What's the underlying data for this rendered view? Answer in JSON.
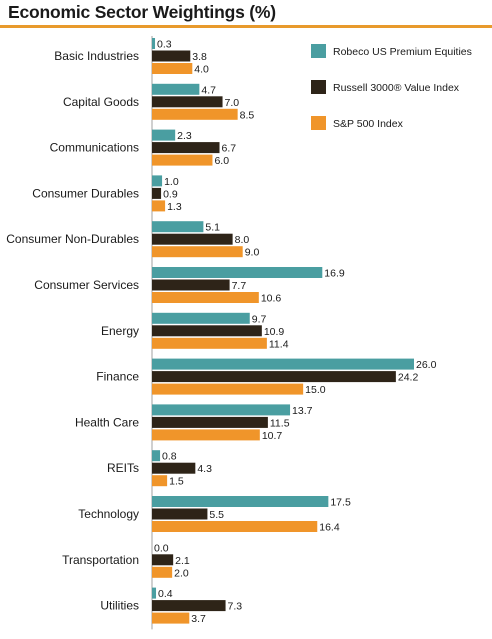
{
  "chart_data": {
    "type": "bar",
    "orientation": "horizontal",
    "title": "Economic Sector Weightings (%)",
    "categories": [
      "Basic Industries",
      "Capital Goods",
      "Communications",
      "Consumer Durables",
      "Consumer Non-Durables",
      "Consumer Services",
      "Energy",
      "Finance",
      "Health Care",
      "REITs",
      "Technology",
      "Transportation",
      "Utilities"
    ],
    "series": [
      {
        "name": "Robeco US Premium Equities",
        "color": "#4a9ea1",
        "values": [
          0.3,
          4.7,
          2.3,
          1.0,
          5.1,
          16.9,
          9.7,
          26.0,
          13.7,
          0.8,
          17.5,
          0.0,
          0.4
        ],
        "labels": [
          "0.3",
          "4.7",
          "2.3",
          "1.0",
          "5.1",
          "16.9",
          "9.7",
          "26.0",
          "13.7",
          "0.8",
          "17.5",
          "0.0",
          "0.4"
        ]
      },
      {
        "name": "Russell 3000® Value Index",
        "color": "#2e2418",
        "values": [
          3.8,
          7.0,
          6.7,
          0.9,
          8.0,
          7.7,
          10.9,
          24.2,
          11.5,
          4.3,
          5.5,
          2.1,
          7.3
        ],
        "labels": [
          "3.8",
          "7.0",
          "6.7",
          "0.9",
          "8.0",
          "7.7",
          "10.9",
          "24.2",
          "11.5",
          "4.3",
          "5.5",
          "2.1",
          "7.3"
        ]
      },
      {
        "name": "S&P 500 Index",
        "color": "#f0952a",
        "values": [
          4.0,
          8.5,
          6.0,
          1.3,
          9.0,
          10.6,
          11.4,
          15.0,
          10.7,
          1.5,
          16.4,
          2.0,
          3.7
        ],
        "labels": [
          "4.0",
          "8.5",
          "6.0",
          "1.3",
          "9.0",
          "10.6",
          "11.4",
          "15.0",
          "10.7",
          "1.5",
          "16.4",
          "2.0",
          "3.7"
        ]
      }
    ],
    "xlim": [
      0,
      26.0
    ],
    "grid": false,
    "legend_position": "top-right"
  }
}
